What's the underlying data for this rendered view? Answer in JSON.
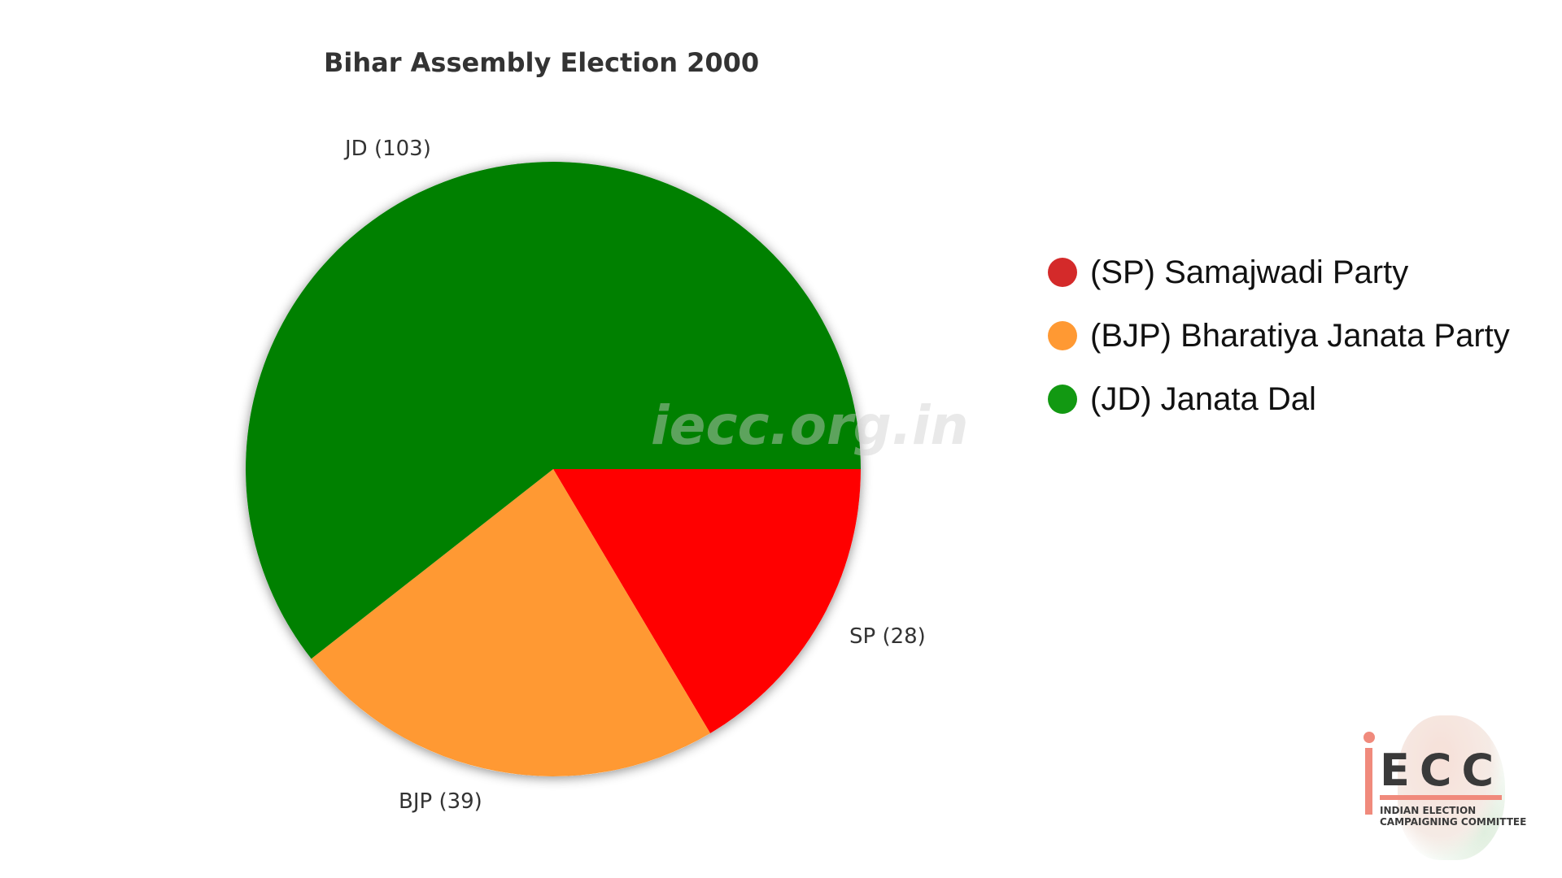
{
  "chart_data": {
    "type": "pie",
    "title": "Bihar Assembly Election 2000",
    "slices": [
      {
        "key": "SP",
        "label": "SP (28)",
        "value": 28,
        "color": "#ff0000"
      },
      {
        "key": "BJP",
        "label": "BJP (39)",
        "value": 39,
        "color": "#ff9933"
      },
      {
        "key": "JD",
        "label": "JD (103)",
        "value": 103,
        "color": "#008000"
      }
    ],
    "legend_position": "right"
  },
  "legend": {
    "items": [
      {
        "label": "(SP) Samajwadi Party",
        "color": "#d42a2a"
      },
      {
        "label": "(BJP) Bharatiya Janata Party",
        "color": "#ff9933"
      },
      {
        "label": "(JD) Janata Dal",
        "color": "#129912"
      }
    ]
  },
  "watermark": "iecc.org.in",
  "logo": {
    "letters": "ECC",
    "line1": "INDIAN ELECTION",
    "line2": "CAMPAIGNING COMMITTEE"
  }
}
